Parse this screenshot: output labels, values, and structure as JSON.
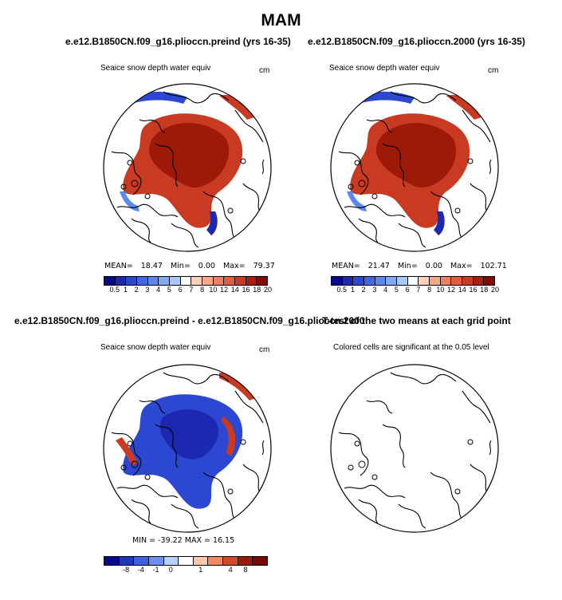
{
  "page_title": "MAM",
  "colors": {
    "cb1": [
      "#08088c",
      "#1c28b0",
      "#2c48d2",
      "#3e68e6",
      "#5a8af0",
      "#80aaf6",
      "#a8c8fa",
      "#ffffff",
      "#fad0b8",
      "#f6a888",
      "#f08060",
      "#e05c3c",
      "#c83a22",
      "#a42010",
      "#800a04"
    ],
    "cb2": [
      "#08088c",
      "#2038b8",
      "#3a62e0",
      "#6a90f0",
      "#b8d0fa",
      "#ffffff",
      "#fac8a8",
      "#f08860",
      "#d24a2a",
      "#9c1a0a",
      "#7a0800"
    ],
    "deep_red": "#9e1a08",
    "mid_red": "#c83a22",
    "blue": "#2c48d2",
    "deep_blue": "#1c28b0",
    "light_blue": "#5a8af0"
  },
  "panels": {
    "top_left": {
      "title": "e.e12.B1850CN.f09_g16.plioccn.preind (yrs 16-35)",
      "subtitle": "Seaice snow depth water equiv",
      "units": "cm",
      "mean_label": "MEAN=",
      "mean": "18.47",
      "min_label": "Min=",
      "min": "0.00",
      "max_label": "Max=",
      "max": "79.37"
    },
    "top_right": {
      "title": "e.e12.B1850CN.f09_g16.plioccn.2000 (yrs 16-35)",
      "subtitle": "Seaice snow depth water equiv",
      "units": "cm",
      "mean_label": "MEAN=",
      "mean": "21.47",
      "min_label": "Min=",
      "min": "0.00",
      "max_label": "Max=",
      "max": "102.71"
    },
    "bottom_left": {
      "title": "e.e12.B1850CN.f09_g16.plioccn.preind - e.e12.B1850CN.f09_g16.plioccn.2000",
      "subtitle": "Seaice snow depth water equiv",
      "units": "cm",
      "stats": "MIN = -39.22   MAX =   16.15"
    },
    "bottom_right": {
      "title": "T-test of the two means at each grid point",
      "subtitle": "Colored cells are significant at the 0.05 level"
    }
  },
  "colorbar1": {
    "labels": [
      "0.5",
      "1",
      "2",
      "3",
      "4",
      "5",
      "6",
      "7",
      "8",
      "10",
      "12",
      "14",
      "16",
      "18",
      "20"
    ]
  },
  "colorbar2": {
    "labels": [
      "-8",
      "-4",
      "-1",
      "0",
      "1",
      "4",
      "8"
    ]
  }
}
